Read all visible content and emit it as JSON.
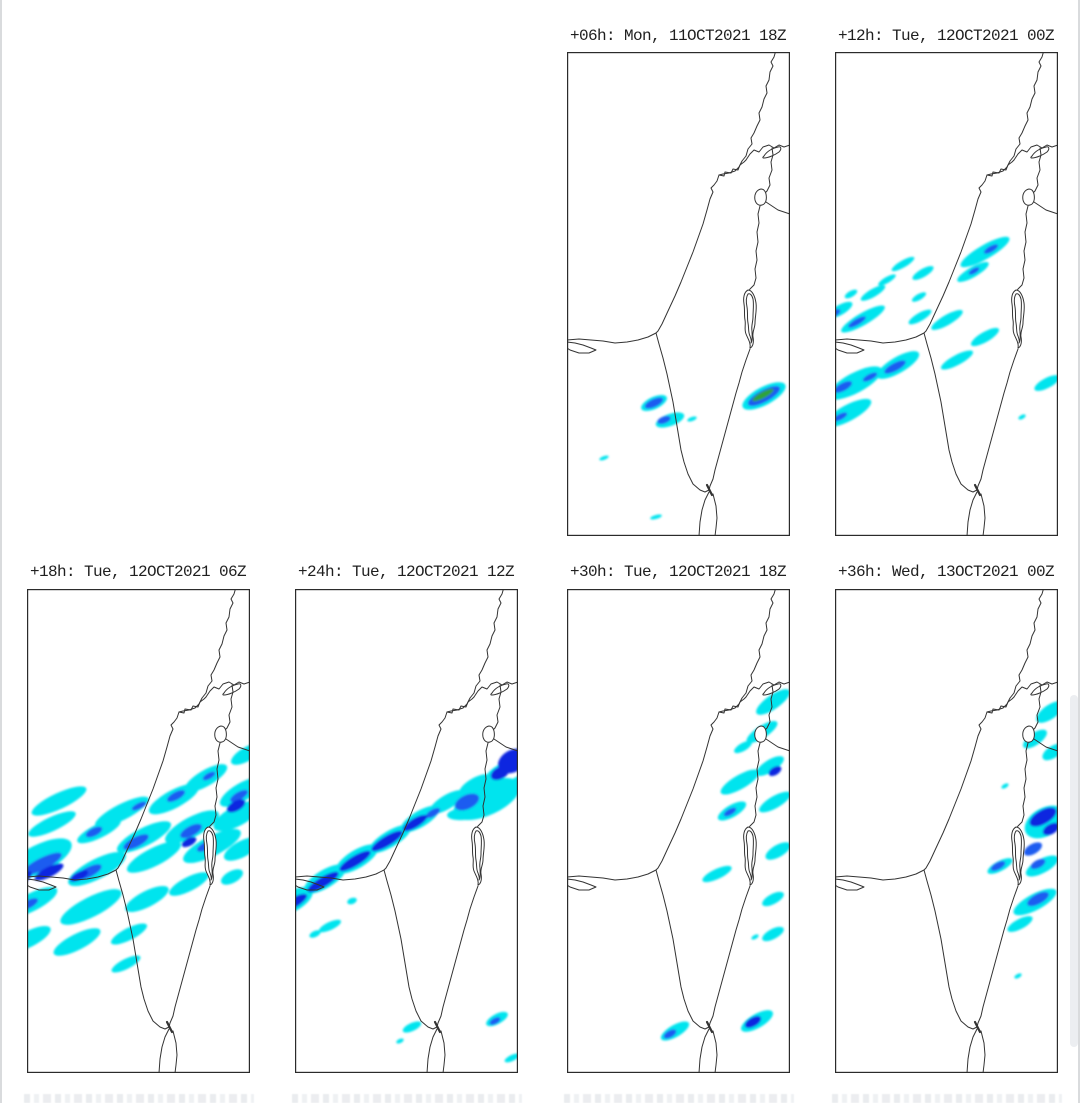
{
  "figure": {
    "kind": "precipitation-forecast-map-grid",
    "region": "Israel and Eastern Mediterranean",
    "palette": {
      "c": "#00e4ee",
      "b": "#1f5cf0",
      "d": "#0826e0",
      "g": "#2fa33a",
      "coast": "#333333"
    },
    "panels": [
      {
        "id": "h06",
        "title": "+06h: Mon, 11OCT2021 18Z",
        "precip": [
          [
            87,
            351,
            14,
            6,
            -25,
            "c"
          ],
          [
            87,
            351,
            10,
            4,
            -25,
            "b"
          ],
          [
            103,
            368,
            15,
            6,
            -20,
            "c"
          ],
          [
            97,
            368,
            7,
            3.5,
            -20,
            "b"
          ],
          [
            125,
            367,
            5,
            2,
            -20,
            "c"
          ],
          [
            197,
            344,
            24,
            9,
            -28,
            "c"
          ],
          [
            197,
            344,
            18,
            6,
            -28,
            "b"
          ],
          [
            196,
            343,
            12,
            3.2,
            -28,
            "g"
          ],
          [
            37,
            406,
            5,
            1.8,
            -20,
            "c"
          ],
          [
            89,
            465,
            6,
            2,
            -15,
            "c"
          ]
        ]
      },
      {
        "id": "h12",
        "title": "+12h: Tue, 12OCT2021 00Z",
        "precip": [
          [
            150,
            200,
            28,
            7,
            -30,
            "c"
          ],
          [
            156,
            197,
            8,
            3,
            -30,
            "b"
          ],
          [
            138,
            220,
            18,
            5,
            -30,
            "c"
          ],
          [
            139,
            219,
            6,
            2.5,
            -30,
            "b"
          ],
          [
            68,
            212,
            13,
            3.5,
            -30,
            "c"
          ],
          [
            88,
            221,
            12,
            4,
            -30,
            "c"
          ],
          [
            52,
            228,
            10,
            3,
            -30,
            "c"
          ],
          [
            38,
            241,
            14,
            4,
            -30,
            "c"
          ],
          [
            16,
            242,
            7,
            3,
            -30,
            "c"
          ],
          [
            5,
            258,
            14,
            5,
            -30,
            "c"
          ],
          [
            0,
            261,
            6,
            3,
            -30,
            "b"
          ],
          [
            28,
            267,
            25,
            6,
            -30,
            "c"
          ],
          [
            22,
            270,
            10,
            3,
            -30,
            "b"
          ],
          [
            84,
            245,
            8,
            3,
            -30,
            "c"
          ],
          [
            85,
            265,
            13,
            4,
            -30,
            "c"
          ],
          [
            112,
            268,
            18,
            5,
            -30,
            "c"
          ],
          [
            150,
            285,
            16,
            5,
            -30,
            "c"
          ],
          [
            63,
            313,
            24,
            8,
            -30,
            "c"
          ],
          [
            60,
            315,
            12,
            4,
            -28,
            "b"
          ],
          [
            20,
            331,
            30,
            10,
            -28,
            "c"
          ],
          [
            8,
            335,
            10,
            4,
            -28,
            "b"
          ],
          [
            35,
            325,
            8,
            3,
            -28,
            "b"
          ],
          [
            13,
            361,
            26,
            8,
            -28,
            "c"
          ],
          [
            5,
            365,
            8,
            3,
            -28,
            "b"
          ],
          [
            122,
            308,
            18,
            5,
            -28,
            "c"
          ],
          [
            212,
            331,
            14,
            5,
            -28,
            "c"
          ],
          [
            187,
            365,
            4,
            2,
            -28,
            "c"
          ]
        ]
      },
      {
        "id": "h18",
        "title": "+18h: Tue, 12OCT2021 06Z",
        "precip": [
          [
            220,
            165,
            18,
            7,
            -30,
            "c"
          ],
          [
            179,
            189,
            24,
            8,
            -30,
            "c"
          ],
          [
            182,
            187,
            7,
            3,
            -30,
            "b"
          ],
          [
            215,
            203,
            25,
            9,
            -30,
            "c"
          ],
          [
            212,
            207,
            10,
            4,
            -30,
            "b"
          ],
          [
            210,
            216,
            9,
            4,
            -30,
            "d"
          ],
          [
            32,
            212,
            30,
            8,
            -25,
            "c"
          ],
          [
            95,
            223,
            30,
            8,
            -27,
            "c"
          ],
          [
            112,
            217,
            8,
            3,
            -27,
            "b"
          ],
          [
            147,
            210,
            28,
            9,
            -28,
            "c"
          ],
          [
            149,
            207,
            10,
            4,
            -28,
            "b"
          ],
          [
            25,
            235,
            26,
            7,
            -25,
            "c"
          ],
          [
            72,
            242,
            24,
            7,
            -26,
            "c"
          ],
          [
            67,
            243,
            9,
            4,
            -26,
            "b"
          ],
          [
            117,
            248,
            30,
            9,
            -27,
            "c"
          ],
          [
            109,
            253,
            14,
            5,
            -27,
            "b"
          ],
          [
            165,
            238,
            30,
            10,
            -28,
            "c"
          ],
          [
            164,
            242,
            12,
            5,
            -28,
            "b"
          ],
          [
            162,
            253,
            8,
            4,
            -28,
            "d"
          ],
          [
            210,
            227,
            26,
            10,
            -28,
            "c"
          ],
          [
            209,
            217,
            10,
            5,
            -28,
            "d"
          ],
          [
            12,
            270,
            36,
            14,
            -27,
            "c"
          ],
          [
            15,
            275,
            22,
            6,
            -27,
            "b"
          ],
          [
            22,
            283,
            16,
            5,
            -27,
            "d"
          ],
          [
            -8,
            290,
            14,
            6,
            -27,
            "d"
          ],
          [
            70,
            280,
            32,
            10,
            -27,
            "c"
          ],
          [
            62,
            283,
            14,
            5,
            -27,
            "b"
          ],
          [
            52,
            287,
            10,
            4,
            -27,
            "d"
          ],
          [
            127,
            268,
            30,
            9,
            -27,
            "c"
          ],
          [
            185,
            257,
            32,
            10,
            -27,
            "c"
          ],
          [
            179,
            257,
            10,
            4,
            -27,
            "b"
          ],
          [
            5,
            313,
            28,
            9,
            -27,
            "c"
          ],
          [
            2,
            315,
            10,
            4,
            -27,
            "b"
          ],
          [
            64,
            318,
            34,
            10,
            -27,
            "c"
          ],
          [
            120,
            310,
            24,
            8,
            -27,
            "c"
          ],
          [
            162,
            295,
            22,
            7,
            -27,
            "c"
          ],
          [
            215,
            260,
            20,
            8,
            -28,
            "c"
          ],
          [
            205,
            288,
            12,
            6,
            -28,
            "c"
          ],
          [
            2,
            350,
            24,
            8,
            -27,
            "c"
          ],
          [
            50,
            353,
            26,
            8,
            -27,
            "c"
          ],
          [
            102,
            345,
            20,
            6,
            -27,
            "c"
          ],
          [
            99,
            375,
            16,
            5,
            -27,
            "c"
          ]
        ]
      },
      {
        "id": "h24",
        "title": "+24h: Tue, 12OCT2021 12Z",
        "precip": [
          [
            -2,
            312,
            22,
            10,
            -30,
            "c"
          ],
          [
            30,
            290,
            24,
            9,
            -31,
            "c"
          ],
          [
            62,
            270,
            24,
            9,
            -31,
            "c"
          ],
          [
            95,
            250,
            24,
            8,
            -31,
            "c"
          ],
          [
            125,
            230,
            22,
            8,
            -31,
            "c"
          ],
          [
            152,
            213,
            20,
            7,
            -31,
            "c"
          ],
          [
            180,
            196,
            18,
            7,
            -30,
            "c"
          ],
          [
            205,
            182,
            16,
            6,
            -30,
            "c"
          ],
          [
            192,
            210,
            36,
            16,
            -25,
            "c"
          ],
          [
            225,
            195,
            14,
            8,
            -25,
            "c"
          ],
          [
            168,
            225,
            16,
            6,
            -5,
            "c"
          ],
          [
            172,
            213,
            13,
            7,
            -25,
            "b"
          ],
          [
            138,
            224,
            8,
            3.5,
            -31,
            "b"
          ],
          [
            -2,
            314,
            16,
            5,
            -30,
            "d"
          ],
          [
            28,
            293,
            18,
            5,
            -31,
            "d"
          ],
          [
            60,
            272,
            18,
            5,
            -31,
            "d"
          ],
          [
            92,
            252,
            18,
            5,
            -31,
            "d"
          ],
          [
            120,
            234,
            14,
            4.5,
            -31,
            "d"
          ],
          [
            218,
            172,
            16,
            11,
            -28,
            "d"
          ],
          [
            205,
            184,
            10,
            6,
            -28,
            "d"
          ],
          [
            57,
            312,
            5,
            3,
            -20,
            "c"
          ],
          [
            35,
            337,
            12,
            4,
            -25,
            "c"
          ],
          [
            20,
            345,
            6,
            3,
            -25,
            "c"
          ],
          [
            117,
            438,
            10,
            4,
            -25,
            "c"
          ],
          [
            105,
            452,
            4,
            2,
            -25,
            "c"
          ],
          [
            202,
            430,
            12,
            5,
            -28,
            "c"
          ],
          [
            200,
            432,
            6,
            3,
            -28,
            "b"
          ],
          [
            217,
            469,
            8,
            3,
            -25,
            "c"
          ]
        ]
      },
      {
        "id": "h30",
        "title": "+30h: Tue, 12OCT2021 18Z",
        "precip": [
          [
            206,
            113,
            20,
            7,
            -35,
            "c"
          ],
          [
            195,
            143,
            18,
            6,
            -33,
            "c"
          ],
          [
            176,
            158,
            10,
            4,
            -30,
            "c"
          ],
          [
            203,
            177,
            16,
            6,
            -32,
            "c"
          ],
          [
            208,
            182,
            7,
            4,
            -32,
            "d"
          ],
          [
            173,
            193,
            22,
            7,
            -30,
            "c"
          ],
          [
            165,
            222,
            16,
            6,
            -30,
            "c"
          ],
          [
            163,
            223,
            7,
            3,
            -30,
            "b"
          ],
          [
            208,
            213,
            18,
            6,
            -30,
            "c"
          ],
          [
            211,
            262,
            14,
            6,
            -30,
            "c"
          ],
          [
            150,
            285,
            16,
            5,
            -25,
            "c"
          ],
          [
            206,
            310,
            12,
            5,
            -28,
            "c"
          ],
          [
            206,
            345,
            12,
            5,
            -28,
            "c"
          ],
          [
            188,
            348,
            4,
            2,
            -28,
            "c"
          ],
          [
            108,
            442,
            16,
            6,
            -30,
            "c"
          ],
          [
            103,
            445,
            7,
            3.5,
            -30,
            "b"
          ],
          [
            190,
            432,
            18,
            7,
            -30,
            "c"
          ],
          [
            186,
            433,
            9,
            4.5,
            -30,
            "d"
          ]
        ]
      },
      {
        "id": "h36",
        "title": "+36h: Wed, 13OCT2021 00Z",
        "precip": [
          [
            215,
            123,
            16,
            7,
            -35,
            "c"
          ],
          [
            200,
            150,
            14,
            6,
            -35,
            "c"
          ],
          [
            218,
            163,
            12,
            6,
            -33,
            "c"
          ],
          [
            170,
            197,
            4,
            2,
            -30,
            "c"
          ],
          [
            210,
            233,
            22,
            14,
            -30,
            "c"
          ],
          [
            208,
            228,
            15,
            7,
            -30,
            "d"
          ],
          [
            216,
            240,
            9,
            5,
            -30,
            "d"
          ],
          [
            198,
            260,
            10,
            5,
            -30,
            "b"
          ],
          [
            165,
            277,
            14,
            5,
            -28,
            "c"
          ],
          [
            163,
            277,
            8,
            3.5,
            -28,
            "b"
          ],
          [
            207,
            277,
            18,
            7,
            -28,
            "c"
          ],
          [
            203,
            275,
            8,
            4,
            -28,
            "b"
          ],
          [
            200,
            313,
            24,
            8,
            -28,
            "c"
          ],
          [
            203,
            310,
            12,
            5,
            -28,
            "b"
          ],
          [
            185,
            335,
            14,
            5,
            -28,
            "c"
          ],
          [
            183,
            387,
            4,
            2,
            -28,
            "c"
          ]
        ]
      }
    ]
  }
}
